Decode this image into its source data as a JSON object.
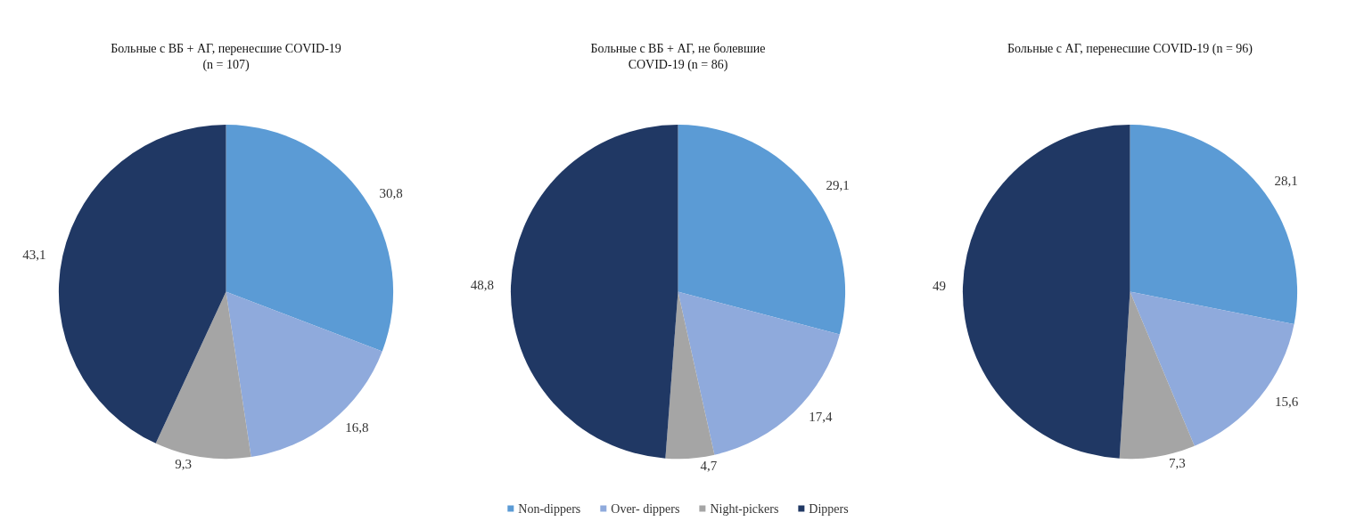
{
  "chart_data": [
    {
      "type": "pie",
      "title": "Больные с ВБ + АГ, перенесшие COVID-19\n(n = 107)",
      "categories": [
        null,
        null,
        null,
        null
      ],
      "values": [
        30.8,
        16.8,
        9.3,
        43.1
      ],
      "value_labels": [
        "30,8",
        "16,8",
        "9,3",
        "43,1"
      ],
      "colors": [
        "#5b9bd5",
        "#8faadc",
        "#a5a5a5",
        "#203864"
      ],
      "legend": false
    },
    {
      "type": "pie",
      "title": "Больные с ВБ + АГ, не болевшие\nCOVID-19 (n = 86)",
      "categories": [
        "Non-dippers",
        "Over- dippers",
        "Night-pickers",
        "Dippers"
      ],
      "values": [
        29.1,
        17.4,
        4.7,
        48.8
      ],
      "value_labels": [
        "29,1",
        "17,4",
        "4,7",
        "48,8"
      ],
      "colors": [
        "#5b9bd5",
        "#8faadc",
        "#a5a5a5",
        "#203864"
      ],
      "legend": "bottom"
    },
    {
      "type": "pie",
      "title": "Больные с АГ, перенесшие COVID-19 (n = 96)",
      "categories": [
        null,
        null,
        null,
        null
      ],
      "values": [
        28.1,
        15.6,
        7.3,
        49
      ],
      "value_labels": [
        "28,1",
        "15,6",
        "7,3",
        "49"
      ],
      "colors": [
        "#5b9bd5",
        "#8faadc",
        "#a5a5a5",
        "#203864"
      ],
      "legend": false
    }
  ]
}
